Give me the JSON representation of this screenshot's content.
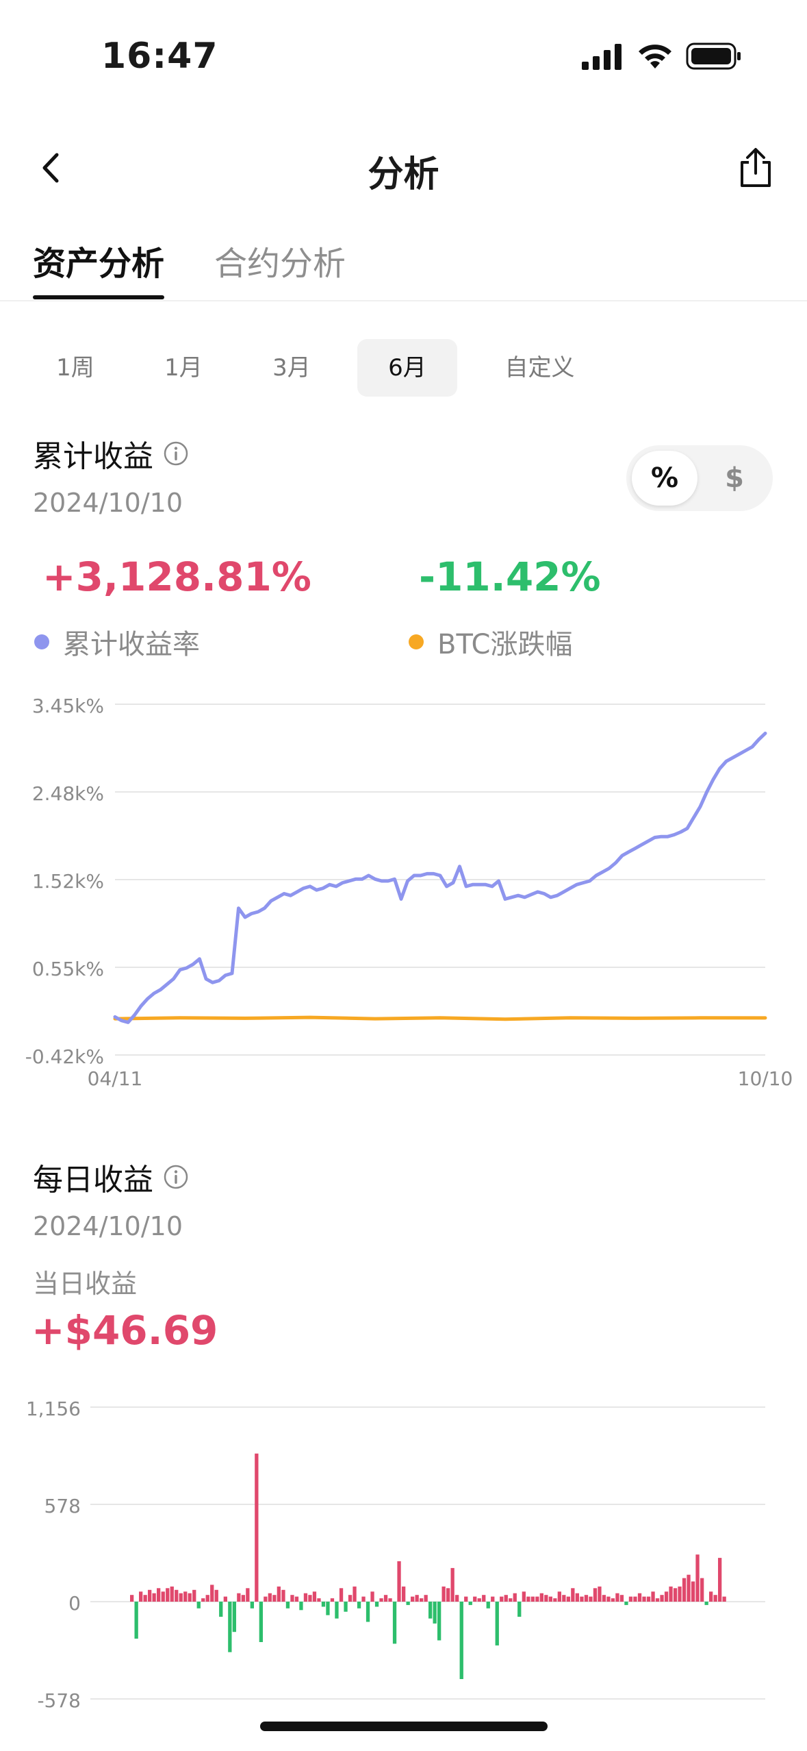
{
  "status_bar": {
    "time": "16:47"
  },
  "nav": {
    "title": "分析"
  },
  "tabs": [
    {
      "label": "资产分析",
      "active": true
    },
    {
      "label": "合约分析",
      "active": false
    }
  ],
  "periods": [
    {
      "label": "1周"
    },
    {
      "label": "1月"
    },
    {
      "label": "3月"
    },
    {
      "label": "6月",
      "active": true
    },
    {
      "label": "自定义"
    }
  ],
  "cumulative": {
    "title": "累计收益",
    "date": "2024/10/10",
    "unit_toggle": {
      "percent": "%",
      "dollar": "$",
      "selected": "%"
    },
    "return_value": "+3,128.81%",
    "btc_value": "-11.42%",
    "legend": {
      "return_label": "累计收益率",
      "btc_label": "BTC涨跌幅"
    },
    "colors": {
      "return": "#8E95EE",
      "btc": "#F7A823",
      "positive": "#E0486C",
      "negative": "#2DBE6C"
    }
  },
  "chart_data": [
    {
      "type": "line",
      "y_ticks": [
        "3.45k%",
        "2.48k%",
        "1.52k%",
        "0.55k%",
        "-0.42k%"
      ],
      "ylim": [
        -420,
        3450
      ],
      "x_ticks": [
        "04/11",
        "10/10"
      ],
      "grid": true,
      "series": [
        {
          "name": "累计收益率",
          "x": [
            0,
            1,
            2,
            3,
            4,
            5,
            6,
            7,
            8,
            9,
            10,
            11,
            12,
            13,
            14,
            15,
            16,
            17,
            18,
            19,
            20,
            21,
            22,
            23,
            24,
            25,
            26,
            27,
            28,
            29,
            30,
            31,
            32,
            33,
            34,
            35,
            36,
            37,
            38,
            39,
            40,
            41,
            42,
            43,
            44,
            45,
            46,
            47,
            48,
            49,
            50,
            51,
            52,
            53,
            54,
            55,
            56,
            57,
            58,
            59,
            60,
            61,
            62,
            63,
            64,
            65,
            66,
            67,
            68,
            69,
            70,
            71,
            72,
            73,
            74,
            75,
            76,
            77,
            78,
            79,
            80,
            81,
            82,
            83,
            84,
            85,
            86,
            87,
            88,
            89,
            90,
            91,
            92,
            93,
            94,
            95,
            96,
            97,
            98,
            99,
            100
          ],
          "values": [
            0,
            -40,
            -60,
            20,
            120,
            200,
            260,
            300,
            360,
            420,
            520,
            540,
            580,
            640,
            420,
            380,
            400,
            460,
            480,
            1200,
            1100,
            1140,
            1160,
            1200,
            1280,
            1320,
            1360,
            1340,
            1380,
            1420,
            1440,
            1400,
            1420,
            1460,
            1440,
            1480,
            1500,
            1520,
            1520,
            1560,
            1520,
            1500,
            1500,
            1520,
            1300,
            1500,
            1560,
            1560,
            1580,
            1580,
            1560,
            1440,
            1480,
            1660,
            1440,
            1460,
            1460,
            1460,
            1440,
            1500,
            1300,
            1320,
            1340,
            1320,
            1350,
            1380,
            1360,
            1320,
            1340,
            1380,
            1420,
            1460,
            1480,
            1500,
            1560,
            1600,
            1640,
            1700,
            1780,
            1820,
            1860,
            1900,
            1940,
            1980,
            1990,
            1990,
            2010,
            2040,
            2080,
            2200,
            2320,
            2480,
            2620,
            2740,
            2820,
            2860,
            2900,
            2940,
            2980,
            3060,
            3129
          ]
        },
        {
          "name": "BTC涨跌幅",
          "x": [
            0,
            10,
            20,
            30,
            40,
            50,
            60,
            70,
            80,
            90,
            100
          ],
          "values": [
            -20,
            -10,
            -15,
            -5,
            -20,
            -10,
            -25,
            -10,
            -15,
            -10,
            -11
          ]
        }
      ]
    },
    {
      "type": "bar",
      "y_ticks": [
        "1,156",
        "578",
        "0",
        "-578"
      ],
      "ylim": [
        -578,
        1156
      ],
      "grid": true,
      "series": [
        {
          "name": "每日收益",
          "values": [
            40,
            -220,
            60,
            40,
            70,
            50,
            80,
            60,
            80,
            90,
            70,
            50,
            60,
            50,
            70,
            -40,
            20,
            40,
            100,
            70,
            -90,
            30,
            -300,
            -180,
            50,
            40,
            80,
            -40,
            880,
            -240,
            30,
            50,
            40,
            90,
            70,
            -40,
            40,
            30,
            -50,
            50,
            40,
            60,
            20,
            -30,
            -80,
            20,
            -100,
            80,
            -60,
            40,
            90,
            -40,
            30,
            -120,
            60,
            -30,
            20,
            40,
            20,
            -250,
            240,
            90,
            -20,
            30,
            40,
            20,
            40,
            -100,
            -130,
            -230,
            90,
            80,
            200,
            40,
            -460,
            30,
            -20,
            30,
            20,
            40,
            -40,
            30,
            -260,
            30,
            40,
            20,
            50,
            -90,
            60,
            30,
            30,
            30,
            50,
            40,
            30,
            20,
            60,
            40,
            30,
            80,
            50,
            30,
            40,
            30,
            80,
            90,
            40,
            30,
            20,
            50,
            40,
            -20,
            30,
            30,
            50,
            30,
            30,
            60,
            20,
            40,
            60,
            90,
            80,
            90,
            140,
            160,
            120,
            280,
            140,
            -20,
            60,
            40,
            260,
            30
          ]
        }
      ]
    }
  ],
  "daily": {
    "title": "每日收益",
    "date": "2024/10/10",
    "sub_label": "当日收益",
    "value": "+$46.69"
  }
}
